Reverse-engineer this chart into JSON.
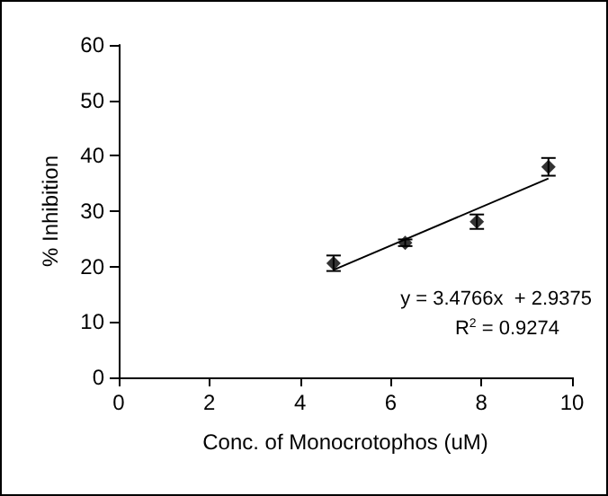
{
  "chart_data": {
    "type": "scatter",
    "xlabel": "Conc. of Monocrotophos (uM)",
    "ylabel": "% Inhibition",
    "x": [
      4.74,
      6.32,
      7.9,
      9.48
    ],
    "series": [
      {
        "color": "#000000",
        "values": [
          20.6,
          24.3,
          28.1,
          38.0
        ],
        "errors": [
          1.4,
          0.6,
          1.3,
          1.6
        ],
        "marker": "diamond"
      },
      {
        "type": "line",
        "color": "#000000",
        "x": [
          4.74,
          9.48
        ],
        "values": [
          19.4,
          35.9
        ],
        "marker": "none",
        "line_style": "solid"
      }
    ],
    "xlim": [
      0,
      10
    ],
    "xticks": [
      0,
      2,
      4,
      6,
      8,
      10
    ],
    "ylim": [
      0,
      60
    ],
    "yticks": [
      0,
      10,
      20,
      30,
      40,
      50,
      60
    ],
    "grid": false,
    "annotations": [
      "y = 3.4766x  + 2.9375",
      "R$^{2}$ = 0.9274"
    ]
  }
}
